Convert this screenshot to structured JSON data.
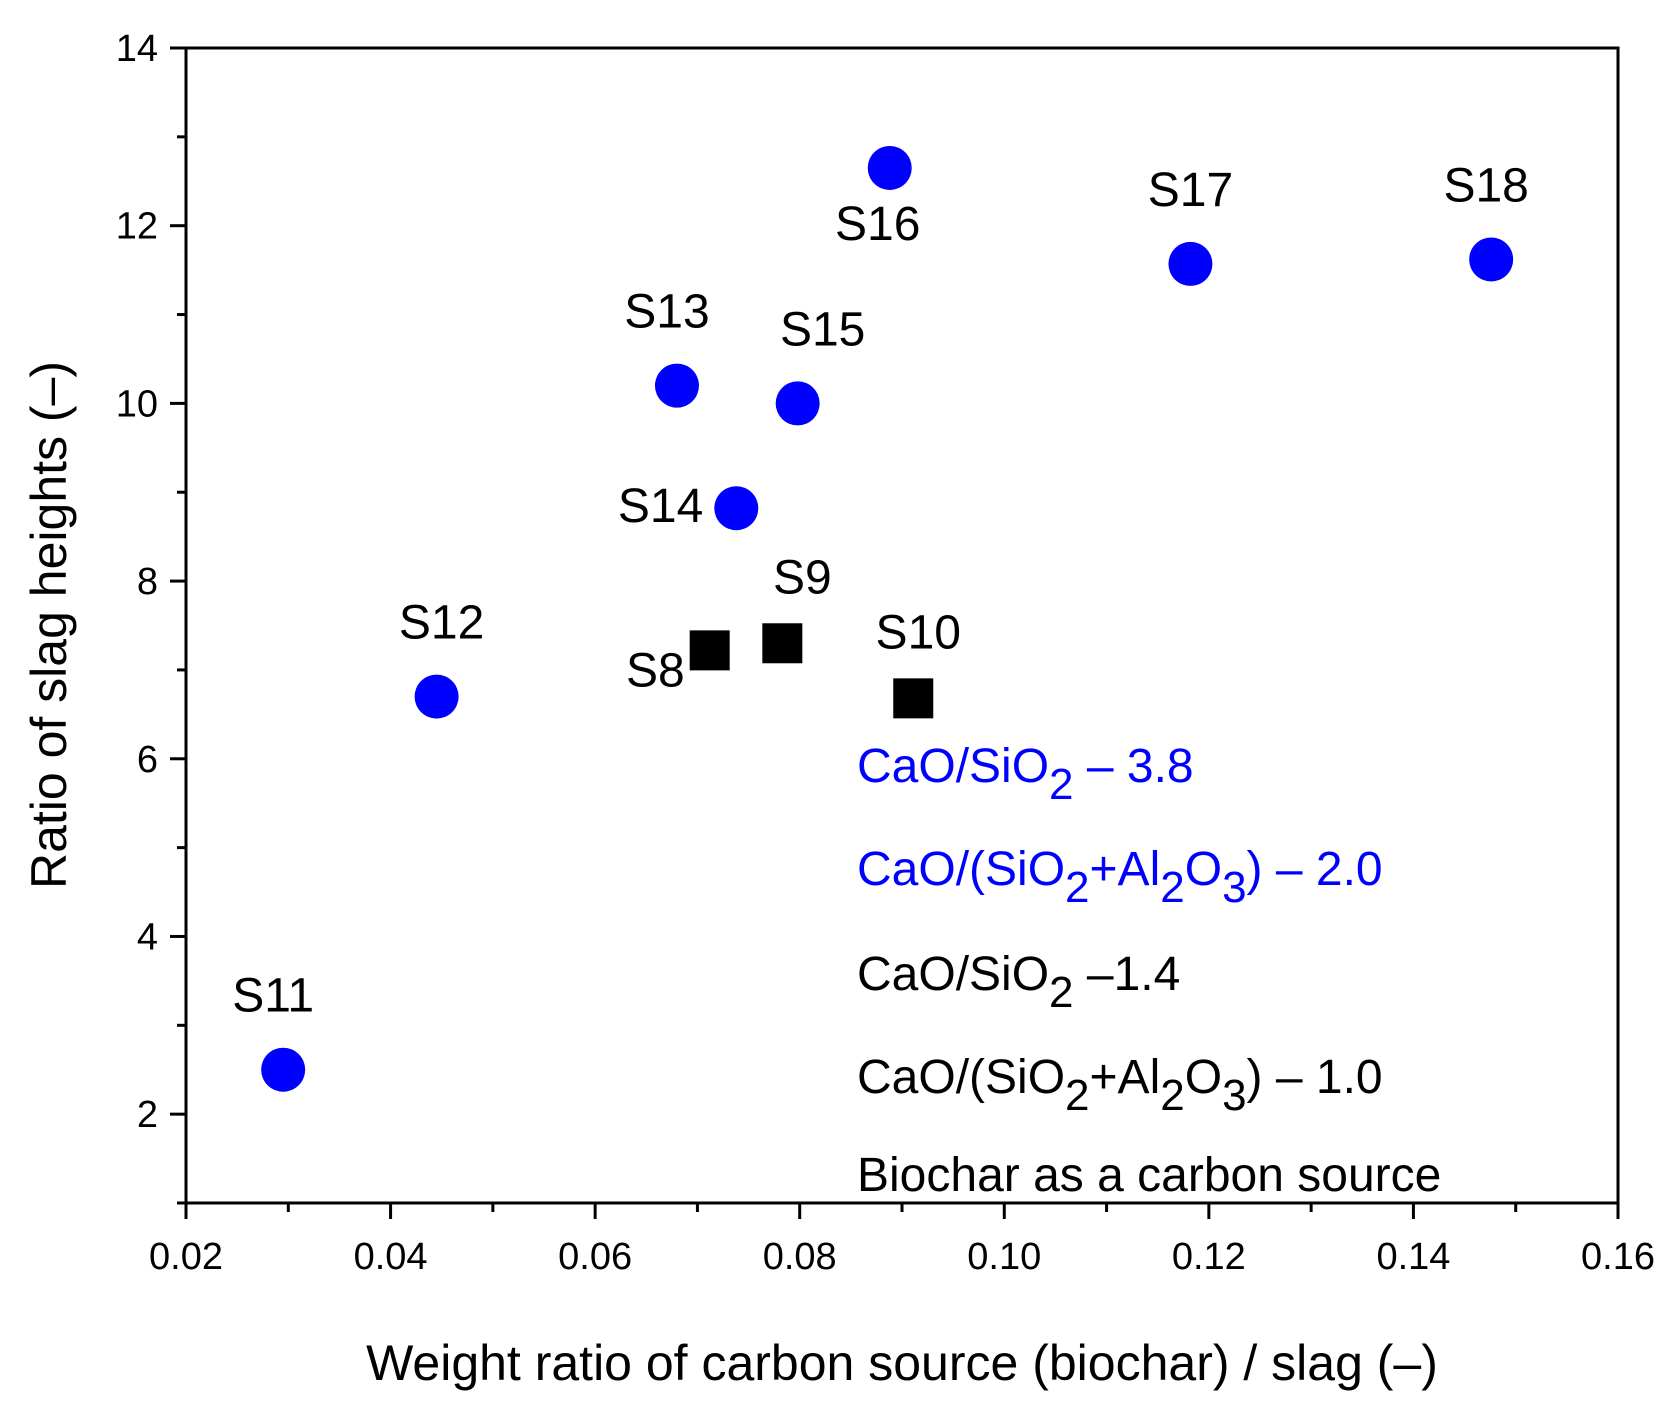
{
  "chart_data": {
    "type": "scatter",
    "xlabel": "Weight ratio of carbon source (biochar) / slag (–)",
    "ylabel": "Ratio of slag heights (–)",
    "xlim": [
      0.02,
      0.16
    ],
    "ylim": [
      1,
      14
    ],
    "x_ticks": [
      {
        "value": 0.02,
        "label": "0.02"
      },
      {
        "value": 0.04,
        "label": "0.04"
      },
      {
        "value": 0.06,
        "label": "0.06"
      },
      {
        "value": 0.08,
        "label": "0.08"
      },
      {
        "value": 0.1,
        "label": "0.10"
      },
      {
        "value": 0.12,
        "label": "0.12"
      },
      {
        "value": 0.14,
        "label": "0.14"
      },
      {
        "value": 0.16,
        "label": "0.16"
      }
    ],
    "y_ticks": [
      {
        "value": 2,
        "label": "2"
      },
      {
        "value": 4,
        "label": "4"
      },
      {
        "value": 6,
        "label": "6"
      },
      {
        "value": 8,
        "label": "8"
      },
      {
        "value": 10,
        "label": "10"
      },
      {
        "value": 12,
        "label": "12"
      },
      {
        "value": 14,
        "label": "14"
      }
    ],
    "series": [
      {
        "name": "CaO/SiO2 – 3.8, CaO/(SiO2+Al2O3) – 2.0",
        "marker": "circle",
        "color": "#0000ff",
        "points": [
          {
            "label": "S11",
            "x": 0.0295,
            "y": 2.5
          },
          {
            "label": "S12",
            "x": 0.0445,
            "y": 6.7
          },
          {
            "label": "S13",
            "x": 0.068,
            "y": 10.2
          },
          {
            "label": "S14",
            "x": 0.0738,
            "y": 8.82
          },
          {
            "label": "S15",
            "x": 0.0798,
            "y": 10.0
          },
          {
            "label": "S16",
            "x": 0.0888,
            "y": 12.65
          },
          {
            "label": "S17",
            "x": 0.1182,
            "y": 11.57
          },
          {
            "label": "S18",
            "x": 0.1476,
            "y": 11.62
          }
        ]
      },
      {
        "name": "CaO/SiO2 –1.4, CaO/(SiO2+Al2O3) – 1.0",
        "marker": "square",
        "color": "#000000",
        "points": [
          {
            "label": "S8",
            "x": 0.0712,
            "y": 7.22
          },
          {
            "label": "S9",
            "x": 0.0783,
            "y": 7.3
          },
          {
            "label": "S10",
            "x": 0.0911,
            "y": 6.68
          }
        ]
      }
    ],
    "legend": {
      "position": "bottom-right",
      "blue_line1": {
        "a": "CaO/SiO",
        "sub1": "2",
        "b": " – 3.8"
      },
      "blue_line2": {
        "a": "CaO/(SiO",
        "sub1": "2",
        "b": "+Al",
        "sub2": "2",
        "c": "O",
        "sub3": "3",
        "d": ") – 2.0"
      },
      "black_line1": {
        "a": "CaO/SiO",
        "sub1": "2",
        "b": " –1.4"
      },
      "black_line2": {
        "a": "CaO/(SiO",
        "sub1": "2",
        "b": "+Al",
        "sub2": "2",
        "c": "O",
        "sub3": "3",
        "d": ") – 1.0"
      },
      "note": "Biochar as a carbon source"
    },
    "colors": {
      "blue": "#0000ff",
      "black": "#000000"
    }
  }
}
